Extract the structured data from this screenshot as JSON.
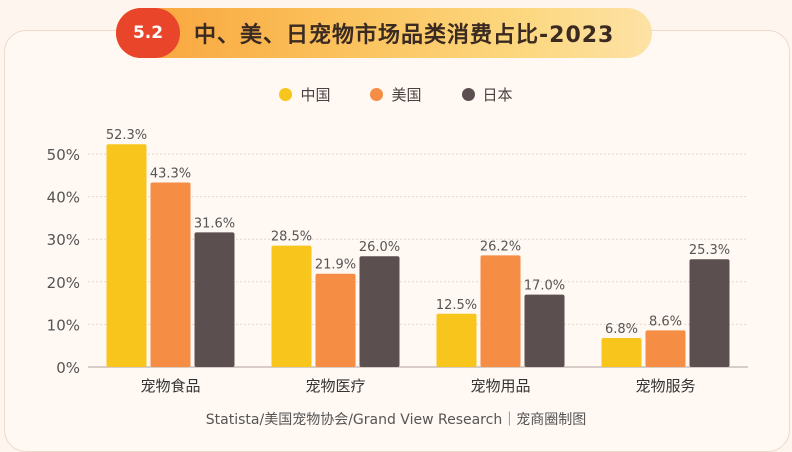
{
  "chart_data": {
    "type": "bar",
    "title": "中、美、日宠物市场品类消费占比-2023",
    "section_number": "5.2",
    "categories": [
      "宠物食品",
      "宠物医疗",
      "宠物用品",
      "宠物服务"
    ],
    "series": [
      {
        "name": "中国",
        "color": "#f8c51c",
        "values": [
          52.3,
          28.5,
          12.5,
          6.8
        ]
      },
      {
        "name": "美国",
        "color": "#f58d45",
        "values": [
          43.3,
          21.9,
          26.2,
          8.6
        ]
      },
      {
        "name": "日本",
        "color": "#5b4f4f",
        "values": [
          31.6,
          26.0,
          17.0,
          25.3
        ]
      }
    ],
    "value_labels": [
      [
        "52.3%",
        "28.5%",
        "12.5%",
        "6.8%"
      ],
      [
        "43.3%",
        "21.9%",
        "26.2%",
        "8.6%"
      ],
      [
        "31.6%",
        "26.0%",
        "17.0%",
        "25.3%"
      ]
    ],
    "yticks": [
      "0%",
      "10%",
      "20%",
      "30%",
      "40%",
      "50%"
    ],
    "ylim": [
      0,
      50
    ],
    "grid": true,
    "legend_position": "top-center",
    "source": "Statista/美国宠物协会/Grand View Research｜宠商圈制图"
  }
}
